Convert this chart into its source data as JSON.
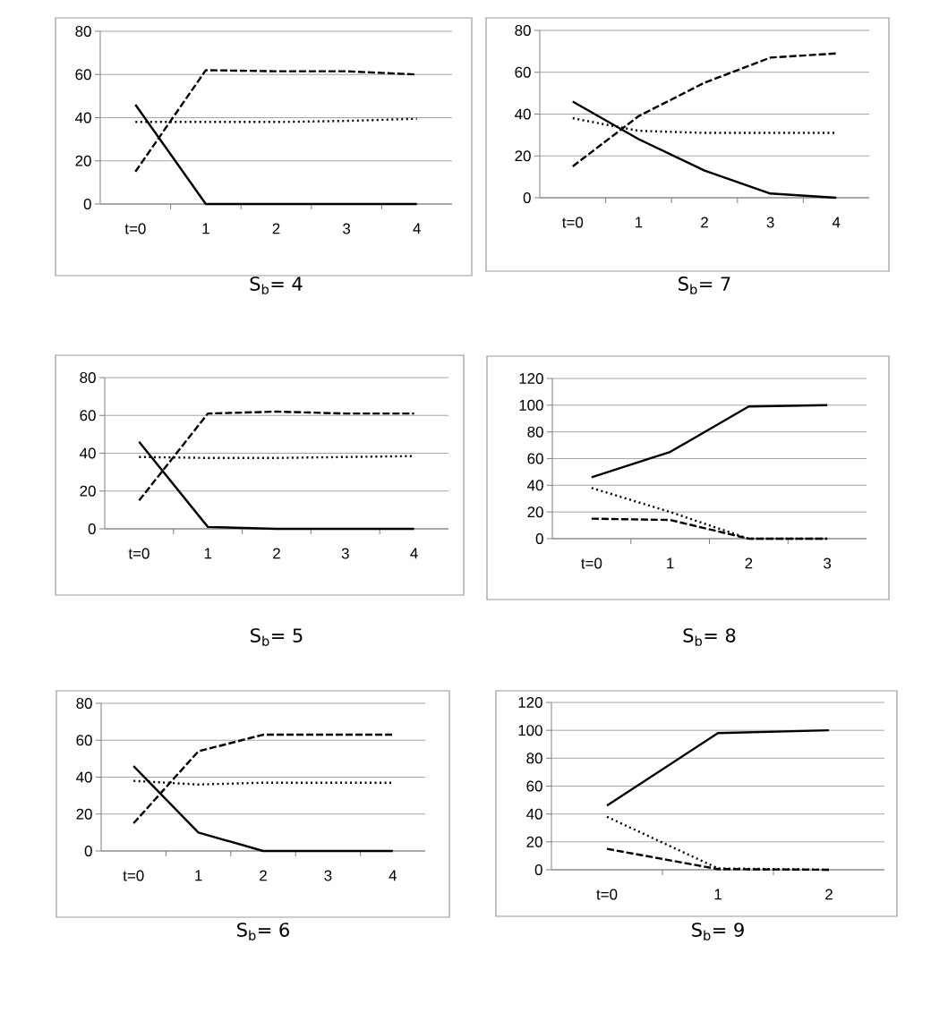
{
  "chart_data": [
    {
      "type": "line",
      "title": "S$_{b}$= 4",
      "categories": [
        "t=0",
        "1",
        "2",
        "3",
        "4"
      ],
      "ylim": [
        0,
        80
      ],
      "yticks": [
        0,
        20,
        40,
        60,
        80
      ],
      "grid": "y",
      "series": [
        {
          "color": "#000000",
          "line_style": "solid",
          "values": [
            46,
            0,
            0,
            0,
            0
          ]
        },
        {
          "color": "#000000",
          "line_style": "dashed",
          "values": [
            15,
            62,
            61.5,
            61.5,
            60
          ]
        },
        {
          "color": "#000000",
          "line_style": "dotted",
          "values": [
            38,
            38,
            38,
            38.5,
            39.5
          ]
        }
      ]
    },
    {
      "type": "line",
      "title": "S$_{b}$= 7",
      "categories": [
        "t=0",
        "1",
        "2",
        "3",
        "4"
      ],
      "ylim": [
        0,
        80
      ],
      "yticks": [
        0,
        20,
        40,
        60,
        80
      ],
      "grid": "y",
      "series": [
        {
          "color": "#000000",
          "line_style": "solid",
          "values": [
            46,
            28,
            13,
            2,
            0
          ]
        },
        {
          "color": "#000000",
          "line_style": "dashed",
          "values": [
            15,
            39,
            55,
            67,
            69
          ]
        },
        {
          "color": "#000000",
          "line_style": "dotted",
          "values": [
            38,
            32,
            31,
            31,
            31
          ]
        }
      ]
    },
    {
      "type": "line",
      "title": "S$_{b}$= 5",
      "categories": [
        "t=0",
        "1",
        "2",
        "3",
        "4"
      ],
      "ylim": [
        0,
        80
      ],
      "yticks": [
        0,
        20,
        40,
        60,
        80
      ],
      "grid": "y",
      "series": [
        {
          "color": "#000000",
          "line_style": "solid",
          "values": [
            46,
            1,
            0,
            0,
            0
          ]
        },
        {
          "color": "#000000",
          "line_style": "dashed",
          "values": [
            15,
            61,
            62,
            61,
            61
          ]
        },
        {
          "color": "#000000",
          "line_style": "dotted",
          "values": [
            38,
            37.5,
            37.5,
            38,
            38.5
          ]
        }
      ]
    },
    {
      "type": "line",
      "title": "S$_{b}$= 8",
      "categories": [
        "t=0",
        "1",
        "2",
        "3"
      ],
      "ylim": [
        0,
        120
      ],
      "yticks": [
        0,
        20,
        40,
        60,
        80,
        100,
        120
      ],
      "grid": "y",
      "series": [
        {
          "color": "#000000",
          "line_style": "solid",
          "values": [
            46,
            65,
            99,
            100
          ]
        },
        {
          "color": "#000000",
          "line_style": "dashed",
          "values": [
            15,
            14,
            0,
            0
          ]
        },
        {
          "color": "#000000",
          "line_style": "dotted",
          "values": [
            38,
            20,
            0,
            0
          ]
        }
      ]
    },
    {
      "type": "line",
      "title": "S$_{b}$= 6",
      "categories": [
        "t=0",
        "1",
        "2",
        "3",
        "4"
      ],
      "ylim": [
        0,
        80
      ],
      "yticks": [
        0,
        20,
        40,
        60,
        80
      ],
      "grid": "y",
      "series": [
        {
          "color": "#000000",
          "line_style": "solid",
          "values": [
            46,
            10,
            0,
            0,
            0
          ]
        },
        {
          "color": "#000000",
          "line_style": "dashed",
          "values": [
            15,
            54,
            63,
            63,
            63
          ]
        },
        {
          "color": "#000000",
          "line_style": "dotted",
          "values": [
            38,
            36,
            37,
            37,
            37
          ]
        }
      ]
    },
    {
      "type": "line",
      "title": "S$_{b}$= 9",
      "categories": [
        "t=0",
        "1",
        "2"
      ],
      "ylim": [
        0,
        120
      ],
      "yticks": [
        0,
        20,
        40,
        60,
        80,
        100,
        120
      ],
      "grid": "y",
      "series": [
        {
          "color": "#000000",
          "line_style": "solid",
          "values": [
            46,
            98,
            100
          ]
        },
        {
          "color": "#000000",
          "line_style": "dashed",
          "values": [
            15,
            0.5,
            0
          ]
        },
        {
          "color": "#000000",
          "line_style": "dotted",
          "values": [
            38,
            1,
            0
          ]
        }
      ]
    }
  ]
}
